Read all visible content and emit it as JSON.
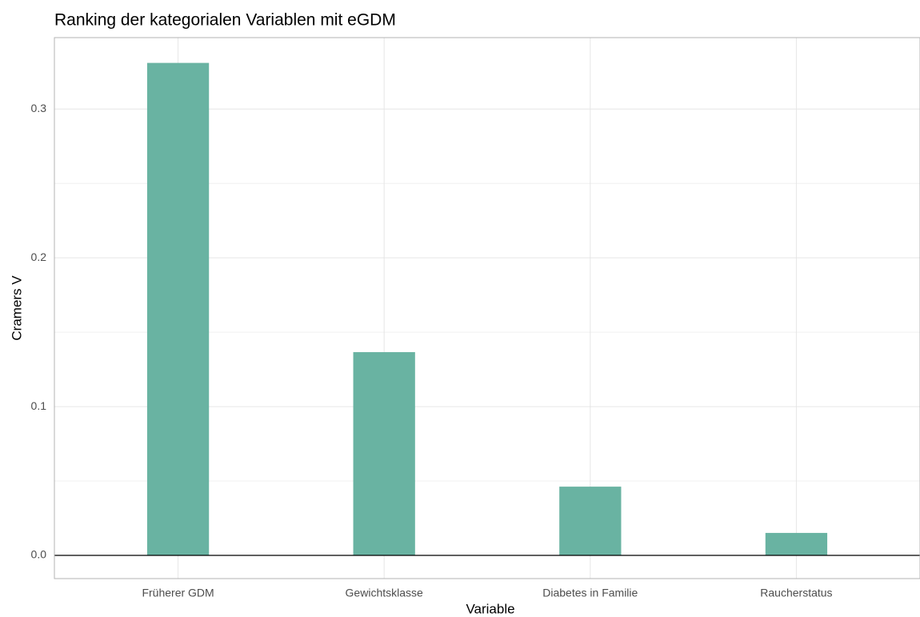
{
  "chart_data": {
    "type": "bar",
    "title": "Ranking der kategorialen Variablen mit eGDM",
    "xlabel": "Variable",
    "ylabel": "Cramers V",
    "categories": [
      "Früherer GDM",
      "Gewichtsklasse",
      "Diabetes in Familie",
      "Raucherstatus"
    ],
    "values": [
      0.331,
      0.1366,
      0.0462,
      0.0151
    ],
    "color": "#69b3a2",
    "ylim": [
      -0.0156,
      0.348
    ],
    "yticks": [
      {
        "value": 0,
        "label": "0.0"
      },
      0.1,
      0.2,
      0.3
    ],
    "yminor": [
      0.05,
      0.15,
      0.25
    ],
    "grid": true,
    "hline": 0
  }
}
